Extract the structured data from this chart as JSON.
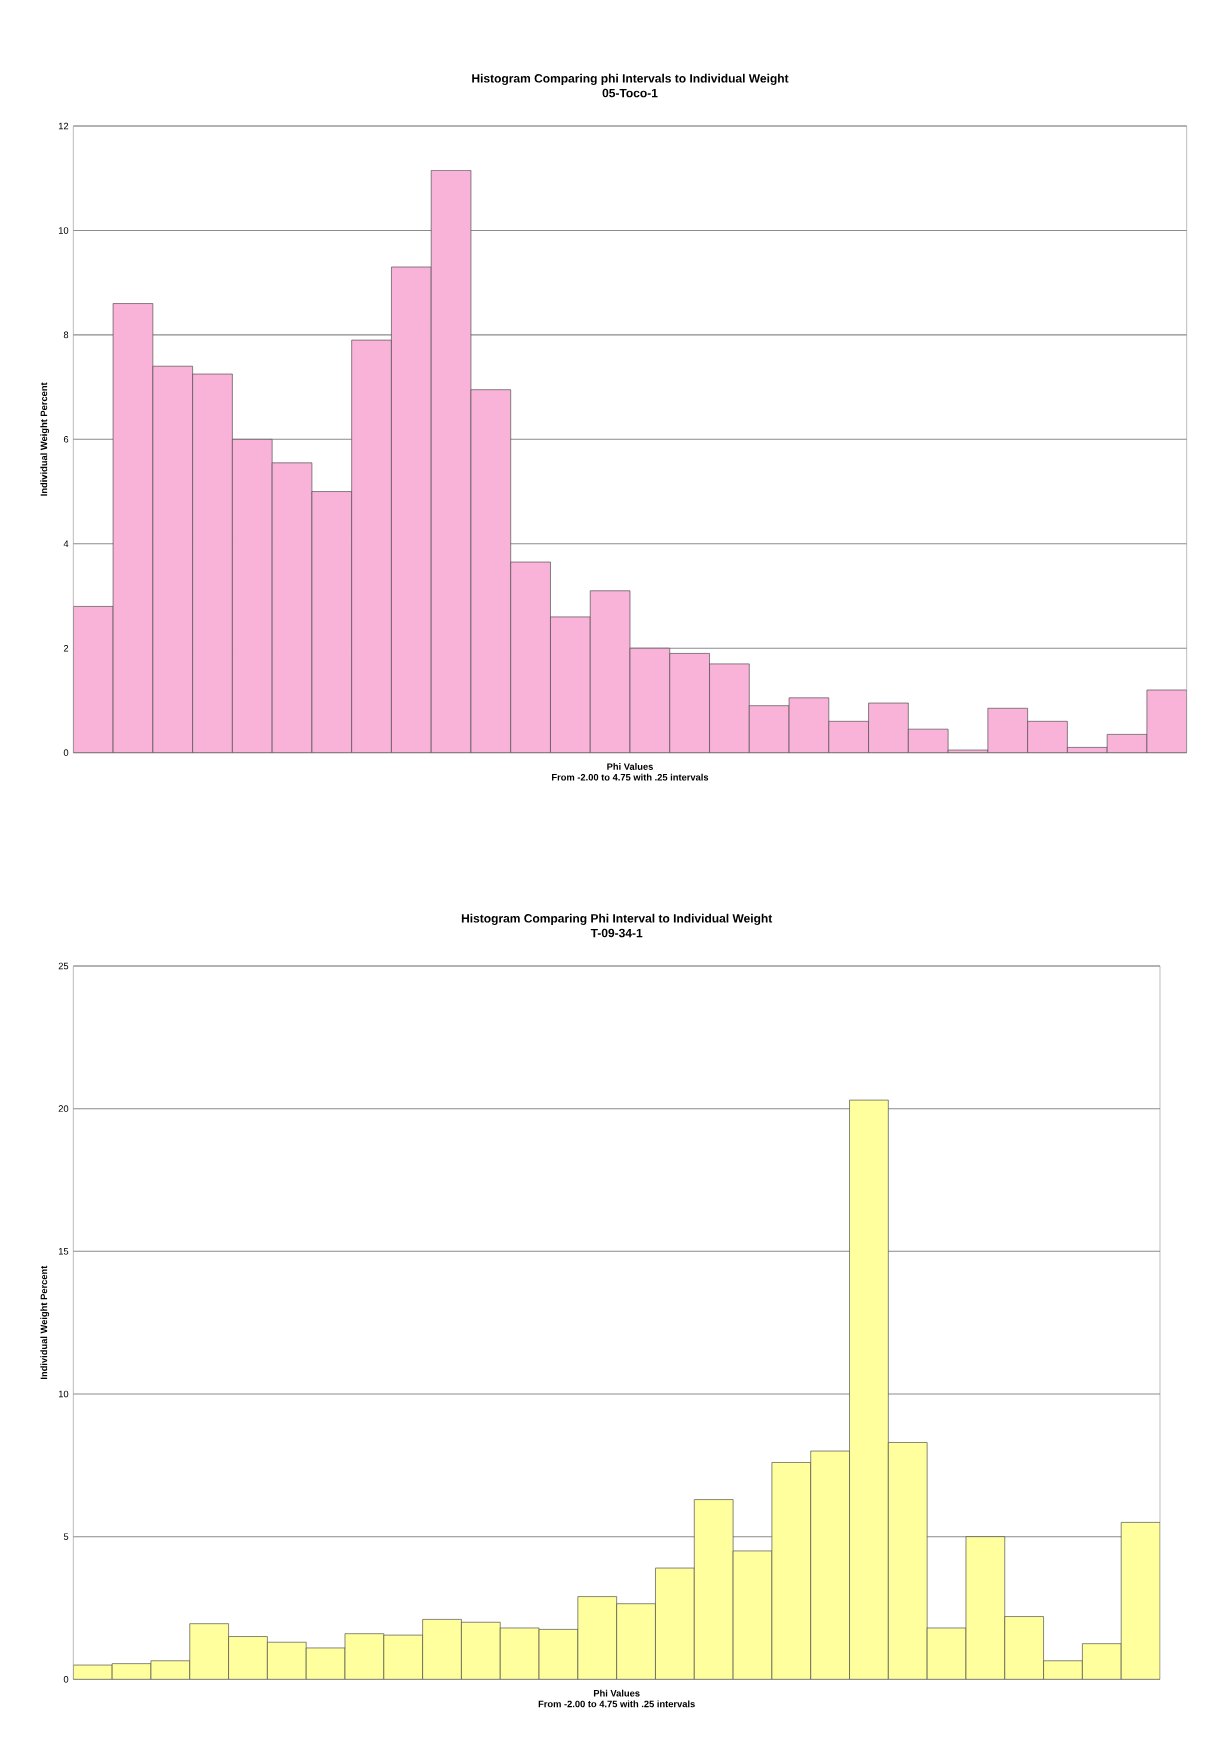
{
  "chart_data": [
    {
      "type": "bar",
      "title": "Histogram Comparing phi Intervals to Individual Weight",
      "subtitle": "05-Toco-1",
      "xlabel": "Phi Values",
      "ylabel": "Individual Weight Percent",
      "annotations": [
        "From -2.00 to 4.75 with .25 intervals"
      ],
      "categories": [
        null,
        null,
        null,
        null,
        null,
        null,
        null,
        null,
        null,
        null,
        null,
        null,
        null,
        null,
        null,
        null,
        null,
        null,
        null,
        null,
        null,
        null,
        null,
        null,
        null,
        null,
        null,
        null
      ],
      "values": [
        2.8,
        8.6,
        7.4,
        7.25,
        6.0,
        5.55,
        5.0,
        7.9,
        9.3,
        11.15,
        6.95,
        3.65,
        2.6,
        3.1,
        2.0,
        1.9,
        1.7,
        0.9,
        1.05,
        0.6,
        0.95,
        0.45,
        0.05,
        0.85,
        0.6,
        0.1,
        0.35,
        1.2
      ],
      "color": "#f9b3d9",
      "ylim": [
        0,
        12
      ],
      "yticks": [
        0,
        2,
        4,
        6,
        8,
        10,
        12
      ],
      "grid": "y"
    },
    {
      "type": "bar",
      "title": "Histogram Comparing Phi Interval to Individual Weight",
      "subtitle": "T-09-34-1",
      "xlabel": "Phi Values",
      "ylabel": "Individual Weight Percent",
      "annotations": [
        "From -2.00 to 4.75 with .25 intervals"
      ],
      "categories": [
        null,
        null,
        null,
        null,
        null,
        null,
        null,
        null,
        null,
        null,
        null,
        null,
        null,
        null,
        null,
        null,
        null,
        null,
        null,
        null,
        null,
        null,
        null,
        null,
        null,
        null,
        null,
        null
      ],
      "values": [
        0.5,
        0.55,
        0.65,
        1.95,
        1.5,
        1.3,
        1.1,
        1.6,
        1.55,
        2.1,
        2.0,
        1.8,
        1.75,
        2.9,
        2.65,
        3.9,
        6.3,
        4.5,
        7.6,
        8.0,
        20.3,
        8.3,
        1.8,
        5.0,
        2.2,
        0.65,
        1.25,
        5.5
      ],
      "color": "#ffff9e",
      "ylim": [
        0,
        25
      ],
      "yticks": [
        0,
        5,
        10,
        15,
        20,
        25
      ],
      "grid": "y"
    }
  ]
}
